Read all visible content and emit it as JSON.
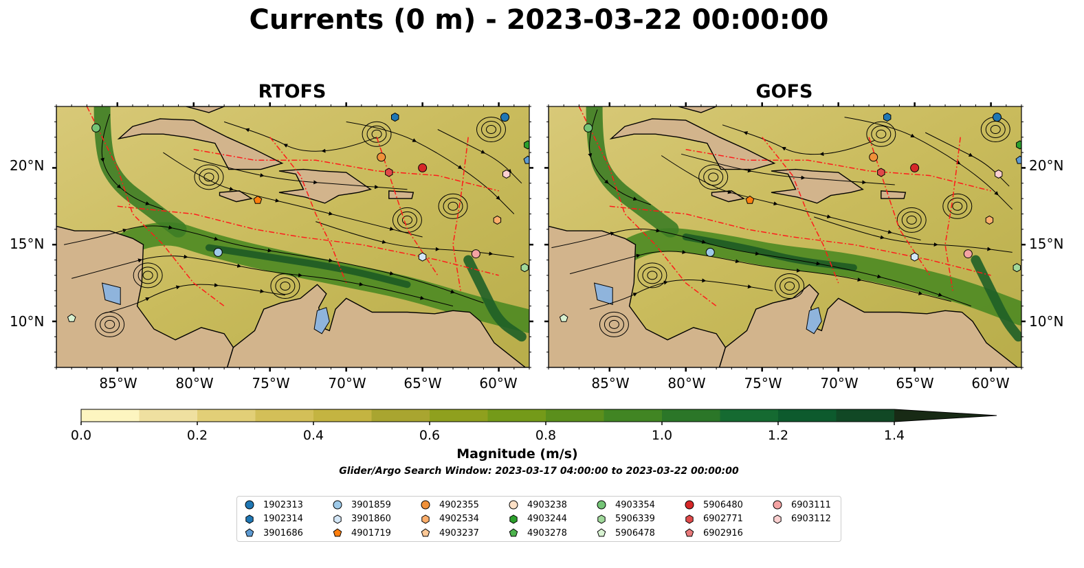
{
  "title": "Currents (0 m) - 2023-03-22 00:00:00",
  "panels": [
    {
      "title": "RTOFS"
    },
    {
      "title": "GOFS"
    }
  ],
  "axes": {
    "lat_labels": [
      "20°N",
      "15°N",
      "10°N"
    ],
    "lon_labels": [
      "85°W",
      "80°W",
      "75°W",
      "70°W",
      "65°W",
      "60°W"
    ]
  },
  "colorbar": {
    "label": "Magnitude (m/s)",
    "ticks": [
      "0.0",
      "0.2",
      "0.4",
      "0.6",
      "0.8",
      "1.0",
      "1.2",
      "1.4"
    ],
    "colors": [
      "#fdf5c0",
      "#efe0a0",
      "#e2cf77",
      "#d3bf58",
      "#c4b441",
      "#a9a530",
      "#8fa01e",
      "#749a19",
      "#5b8f1c",
      "#418523",
      "#2b7628",
      "#156a31",
      "#0d5a2d",
      "#114825",
      "#17351c",
      "#182a15"
    ],
    "range": [
      0,
      1.6
    ]
  },
  "subtitle": "Glider/Argo Search Window: 2023-03-17 04:00:00 to 2023-03-22 00:00:00",
  "legend": [
    {
      "label": "1902313",
      "marker": "circle",
      "color": "#1f77b4"
    },
    {
      "label": "1902314",
      "marker": "hexagon",
      "color": "#1f77b4"
    },
    {
      "label": "3901686",
      "marker": "pentagon",
      "color": "#5d9ad2"
    },
    {
      "label": "3901859",
      "marker": "circle",
      "color": "#9ecae9"
    },
    {
      "label": "3901860",
      "marker": "hexagon",
      "color": "#d4e7f7"
    },
    {
      "label": "4901719",
      "marker": "pentagon",
      "color": "#ff7f0e"
    },
    {
      "label": "4902355",
      "marker": "circle",
      "color": "#f0913a"
    },
    {
      "label": "4902534",
      "marker": "hexagon",
      "color": "#fdae6b"
    },
    {
      "label": "4903237",
      "marker": "pentagon",
      "color": "#fdc896"
    },
    {
      "label": "4903238",
      "marker": "circle",
      "color": "#fde0c6"
    },
    {
      "label": "4903244",
      "marker": "hexagon",
      "color": "#2ca02c"
    },
    {
      "label": "4903278",
      "marker": "pentagon",
      "color": "#4db34d"
    },
    {
      "label": "4903354",
      "marker": "circle",
      "color": "#74c476"
    },
    {
      "label": "5906339",
      "marker": "hexagon",
      "color": "#a1d99b"
    },
    {
      "label": "5906478",
      "marker": "pentagon",
      "color": "#d8f2d2"
    },
    {
      "label": "5906480",
      "marker": "circle",
      "color": "#d62728"
    },
    {
      "label": "6902771",
      "marker": "hexagon",
      "color": "#e04a4a"
    },
    {
      "label": "6902916",
      "marker": "pentagon",
      "color": "#e8797a"
    },
    {
      "label": "6903111",
      "marker": "circle",
      "color": "#f4a3a3"
    },
    {
      "label": "6903112",
      "marker": "hexagon",
      "color": "#fbd0d0"
    }
  ],
  "floats": [
    {
      "id": "4903354",
      "lon": -86.4,
      "lat": 22.6
    },
    {
      "id": "1902314",
      "lon": -66.8,
      "lat": 23.3
    },
    {
      "id": "1902313",
      "lon": -59.6,
      "lat": 23.3
    },
    {
      "id": "4903244",
      "lon": -58.1,
      "lat": 21.5
    },
    {
      "id": "3901686",
      "lon": -58.1,
      "lat": 20.5
    },
    {
      "id": "4902355",
      "lon": -67.7,
      "lat": 20.7
    },
    {
      "id": "6902771",
      "lon": -67.2,
      "lat": 19.7
    },
    {
      "id": "5906480",
      "lon": -65.0,
      "lat": 20.0
    },
    {
      "id": "6903112",
      "lon": -59.5,
      "lat": 19.6
    },
    {
      "id": "4901719",
      "lon": -75.8,
      "lat": 17.9
    },
    {
      "id": "4902534",
      "lon": -60.1,
      "lat": 16.6
    },
    {
      "id": "3901859",
      "lon": -78.4,
      "lat": 14.5
    },
    {
      "id": "3901860",
      "lon": -65.0,
      "lat": 14.2
    },
    {
      "id": "6903111",
      "lon": -61.5,
      "lat": 14.4
    },
    {
      "id": "5906339",
      "lon": -58.3,
      "lat": 13.5
    },
    {
      "id": "5906478",
      "lon": -88.0,
      "lat": 10.2
    }
  ],
  "map_extent": {
    "lon": [
      -89,
      -58
    ],
    "lat": [
      7,
      24
    ]
  }
}
